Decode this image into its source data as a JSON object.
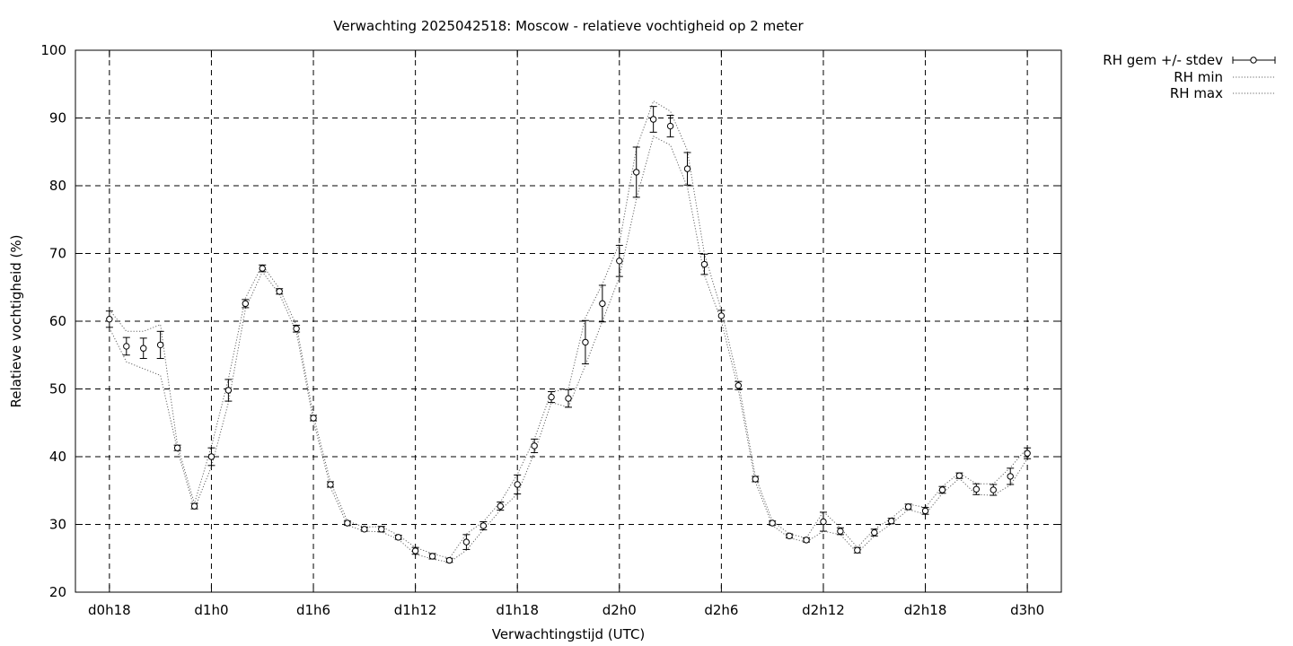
{
  "chart_data": {
    "type": "line",
    "title": "Verwachting 2025042518: Moscow - relatieve vochtigheid op 2 meter",
    "xlabel": "Verwachtingstijd (UTC)",
    "ylabel": "Relatieve vochtigheid (%)",
    "ylim": [
      20,
      100
    ],
    "yticks": [
      20,
      30,
      40,
      50,
      60,
      70,
      80,
      90,
      100
    ],
    "xlim_hours": [
      -2,
      56
    ],
    "xticks": [
      {
        "hour": 0,
        "label": "d0h18"
      },
      {
        "hour": 6,
        "label": "d1h0"
      },
      {
        "hour": 12,
        "label": "d1h6"
      },
      {
        "hour": 18,
        "label": "d1h12"
      },
      {
        "hour": 24,
        "label": "d1h18"
      },
      {
        "hour": 30,
        "label": "d2h0"
      },
      {
        "hour": 36,
        "label": "d2h6"
      },
      {
        "hour": 42,
        "label": "d2h12"
      },
      {
        "hour": 48,
        "label": "d2h18"
      },
      {
        "hour": 54,
        "label": "d3h0"
      }
    ],
    "grid": true,
    "legend_position": "outside-top-right",
    "legend": [
      "RH gem +/- stdev",
      "RH min",
      "RH max"
    ],
    "series": [
      {
        "name": "RH gem +/- stdev",
        "x": [
          0,
          1,
          2,
          3,
          4,
          5,
          6,
          7,
          8,
          9,
          10,
          11,
          12,
          13,
          14,
          15,
          16,
          17,
          18,
          19,
          20,
          21,
          22,
          23,
          24,
          25,
          26,
          27,
          28,
          29,
          30,
          31,
          32,
          33,
          34,
          35,
          36,
          37,
          38,
          39,
          40,
          41,
          42,
          43,
          44,
          45,
          46,
          47,
          48,
          49,
          50,
          51,
          52,
          53,
          54
        ],
        "mean": [
          60.3,
          56.3,
          56.0,
          56.5,
          41.3,
          32.7,
          40.0,
          49.8,
          62.6,
          67.8,
          64.4,
          58.9,
          45.7,
          35.9,
          30.2,
          29.3,
          29.3,
          28.1,
          26.1,
          25.3,
          24.7,
          27.4,
          29.8,
          32.7,
          35.9,
          41.6,
          48.8,
          48.6,
          56.9,
          62.6,
          68.9,
          82.0,
          89.8,
          88.8,
          82.5,
          68.4,
          60.8,
          50.5,
          36.7,
          30.2,
          28.3,
          27.7,
          30.4,
          29.0,
          26.2,
          28.8,
          30.5,
          32.6,
          32.0,
          35.1,
          37.2,
          35.2,
          35.1,
          37.1,
          40.5
        ],
        "stdev": [
          1.2,
          1.3,
          1.5,
          2.0,
          0.4,
          0.4,
          1.3,
          1.6,
          0.6,
          0.5,
          0.4,
          0.5,
          0.4,
          0.4,
          0.3,
          0.3,
          0.4,
          0.3,
          0.5,
          0.4,
          0.3,
          1.1,
          0.6,
          0.6,
          1.4,
          1.0,
          0.8,
          1.3,
          3.2,
          2.7,
          2.3,
          3.7,
          1.9,
          1.6,
          2.4,
          1.5,
          0.8,
          0.6,
          0.4,
          0.3,
          0.3,
          0.3,
          1.4,
          0.5,
          0.4,
          0.5,
          0.4,
          0.4,
          0.5,
          0.5,
          0.4,
          0.8,
          0.8,
          1.2,
          0.8
        ]
      },
      {
        "name": "RH min",
        "x": [
          0,
          1,
          2,
          3,
          4,
          5,
          6,
          7,
          8,
          9,
          10,
          11,
          12,
          13,
          14,
          15,
          16,
          17,
          18,
          19,
          20,
          21,
          22,
          23,
          24,
          25,
          26,
          27,
          28,
          29,
          30,
          31,
          32,
          33,
          34,
          35,
          36,
          37,
          38,
          39,
          40,
          41,
          42,
          43,
          44,
          45,
          46,
          47,
          48,
          49,
          50,
          51,
          52,
          53,
          54
        ],
        "values": [
          59.0,
          54.0,
          53.0,
          52.0,
          41.0,
          32.3,
          38.5,
          48.0,
          61.8,
          67.3,
          64.0,
          58.4,
          45.3,
          35.5,
          29.9,
          29.0,
          28.9,
          27.8,
          25.6,
          24.9,
          24.4,
          26.2,
          29.2,
          32.1,
          34.5,
          40.6,
          48.0,
          47.3,
          53.5,
          60.0,
          66.5,
          78.0,
          87.3,
          86.0,
          79.8,
          66.8,
          60.0,
          49.9,
          36.3,
          29.9,
          28.0,
          27.4,
          29.0,
          28.5,
          25.8,
          28.3,
          30.1,
          32.2,
          31.5,
          34.6,
          36.8,
          34.4,
          34.3,
          35.8,
          39.7
        ]
      },
      {
        "name": "RH max",
        "x": [
          0,
          1,
          2,
          3,
          4,
          5,
          6,
          7,
          8,
          9,
          10,
          11,
          12,
          13,
          14,
          15,
          16,
          17,
          18,
          19,
          20,
          21,
          22,
          23,
          24,
          25,
          26,
          27,
          28,
          29,
          30,
          31,
          32,
          33,
          34,
          35,
          36,
          37,
          38,
          39,
          40,
          41,
          42,
          43,
          44,
          45,
          46,
          47,
          48,
          49,
          50,
          51,
          52,
          53,
          54
        ],
        "values": [
          61.7,
          58.5,
          58.5,
          59.5,
          41.7,
          33.1,
          41.5,
          51.5,
          63.4,
          68.3,
          64.8,
          59.4,
          46.1,
          36.3,
          30.5,
          29.6,
          29.7,
          28.4,
          26.6,
          25.7,
          25.0,
          28.6,
          30.4,
          33.3,
          37.4,
          42.6,
          49.6,
          50.0,
          60.5,
          65.5,
          71.5,
          85.5,
          92.5,
          91.0,
          85.2,
          70.0,
          61.6,
          51.1,
          37.1,
          30.5,
          28.6,
          28.0,
          31.9,
          29.5,
          26.6,
          29.3,
          30.9,
          33.0,
          32.5,
          35.6,
          37.6,
          36.0,
          36.0,
          38.4,
          41.3
        ]
      }
    ]
  }
}
